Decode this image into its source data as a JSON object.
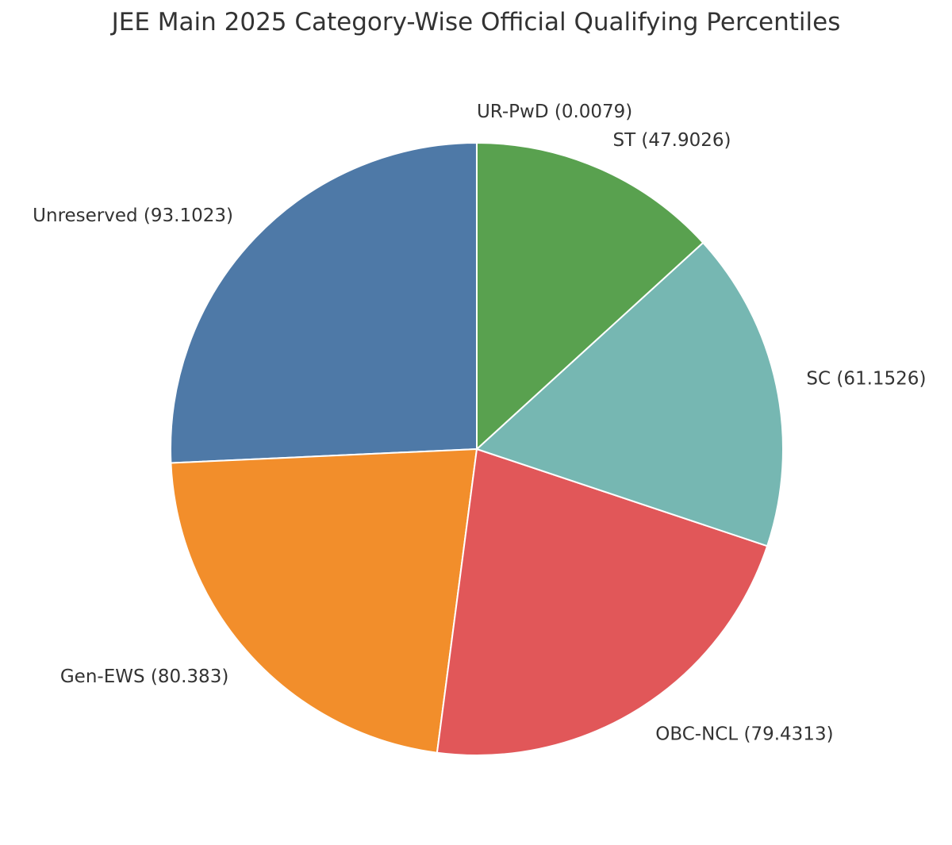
{
  "chart_data": {
    "type": "pie",
    "title": "JEE Main 2025 Category-Wise Official Qualifying Percentiles",
    "categories": [
      "UR-PwD",
      "Unreserved",
      "Gen-EWS",
      "OBC-NCL",
      "SC",
      "ST"
    ],
    "values": [
      0.0079,
      93.1023,
      80.383,
      79.4313,
      61.1526,
      47.9026
    ],
    "labels": [
      "UR-PwD (0.0079)",
      "Unreserved (93.1023)",
      "Gen-EWS (80.383)",
      "OBC-NCL (79.4313)",
      "SC (61.1526)",
      "ST (47.9026)"
    ],
    "colors": [
      "#e377c2",
      "#4e79a7",
      "#f28e2b",
      "#e15759",
      "#76b7b2",
      "#59a14f"
    ],
    "start_angle": 90,
    "direction": "counterclockwise",
    "legend": "none"
  }
}
